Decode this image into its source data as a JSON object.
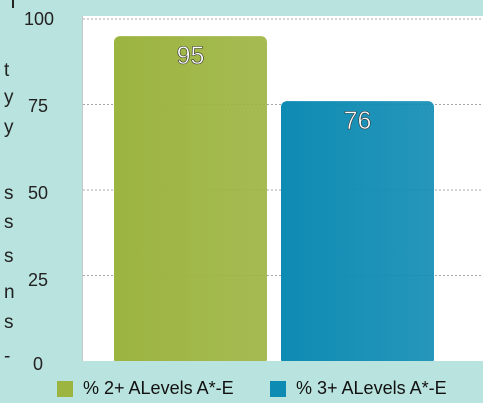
{
  "page": {
    "background": "#b9e3de",
    "cut_off_side_text": [
      "t",
      "y",
      "y",
      "s",
      "s",
      "s",
      "n",
      "s",
      "-"
    ]
  },
  "chart_data": {
    "type": "bar",
    "title": "",
    "xlabel": "",
    "ylabel": "",
    "categories": [
      "% 2+ ALevels A*-E",
      "% 3+ ALevels A*-E"
    ],
    "values": [
      95,
      76
    ],
    "data_labels": [
      "95",
      "76"
    ],
    "colors": [
      "#9cb440",
      "#0e8bb3"
    ],
    "ylim": [
      0,
      100
    ],
    "yticks": [
      "0",
      "25",
      "50",
      "75",
      "100"
    ],
    "grid": true,
    "legend": {
      "position": "bottom",
      "entries": [
        "% 2+ ALevels A*-E",
        "% 3+ ALevels A*-E"
      ]
    }
  }
}
